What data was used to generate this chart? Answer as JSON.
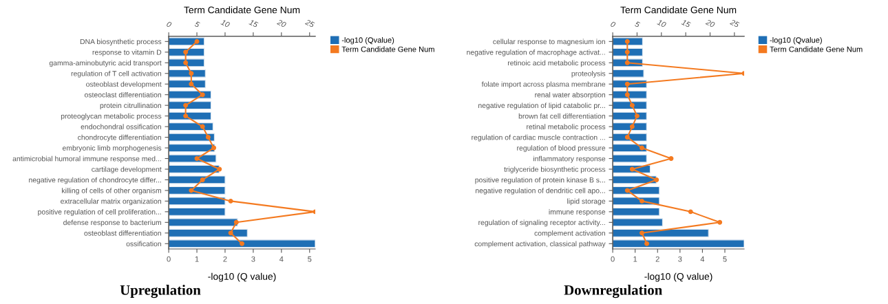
{
  "chart_data": [
    {
      "type": "bar",
      "orientation": "horizontal",
      "x2label": "Term Candidate Gene Num",
      "xlabel": "-log10 (Q value)",
      "annotations": [
        "Upregulation"
      ],
      "legend": "top right",
      "marker": "circle",
      "grid": false,
      "categories": [
        "DNA biosynthetic process",
        "response to vitamin D",
        "gamma-aminobutyric acid transport",
        "regulation of T cell activation",
        "osteoblast development",
        "osteoclast differentiation",
        "protein citrullination",
        "proteoglycan metabolic process",
        "endochondral ossification",
        "chondrocyte differentiation",
        "embryonic limb morphogenesis",
        "antimicrobial humoral immune response med...",
        "cartilage development",
        "negative regulation of chondrocyte differ...",
        "killing of cells of other organism",
        "extracellular matrix organization",
        "positive regulation of cell proliferation...",
        "defense response to bacterium",
        "osteoblast differentiation",
        "ossification"
      ],
      "xlim": [
        0,
        5.2
      ],
      "xticks": [
        0,
        1,
        2,
        3,
        4,
        5
      ],
      "x2lim": [
        0,
        26
      ],
      "x2ticks": [
        0,
        5,
        10,
        15,
        20,
        25
      ],
      "series": [
        {
          "name": "-log10 (Qvalue)",
          "color": "#1f6fb5",
          "values": [
            1.26,
            1.26,
            1.26,
            1.3,
            1.3,
            1.5,
            1.5,
            1.5,
            1.57,
            1.62,
            1.63,
            1.68,
            1.79,
            2.0,
            2.0,
            2.0,
            2.0,
            2.44,
            2.79,
            5.2
          ]
        },
        {
          "name": "Term Candidate Gene Num",
          "type": "line",
          "axis": "x2",
          "color": "#f47a20",
          "values": [
            5,
            3,
            3,
            4,
            4,
            6,
            3,
            3,
            6,
            7,
            8,
            5,
            9,
            6,
            4,
            11,
            26,
            12,
            11,
            13
          ]
        }
      ]
    },
    {
      "type": "bar",
      "orientation": "horizontal",
      "x2label": "Term Candidate Gene Num",
      "xlabel": "-log10 (Q value)",
      "annotations": [
        "Downregulation"
      ],
      "legend": "top right",
      "marker": "circle",
      "grid": false,
      "categories": [
        "cellular response to magnesium ion",
        "negative regulation of macrophage activat...",
        "retinoic acid metabolic process",
        "proteolysis",
        "folate import across plasma membrane",
        "renal water absorption",
        "negative regulation of lipid catabolic pr...",
        "brown fat cell differentiation",
        "retinal metabolic process",
        "regulation of cardiac muscle contraction ...",
        "regulation of blood pressure",
        "inflammatory response",
        "triglyceride biosynthetic process",
        "positive regulation of protein kinase B s...",
        "negative regulation of dendritic cell apo...",
        "lipid storage",
        "immune response",
        "regulation of signaling receptor activity...",
        "complement activation",
        "complement activation, classical pathway"
      ],
      "xlim": [
        0,
        5.86
      ],
      "xticks": [
        0,
        1,
        2,
        3,
        4,
        5
      ],
      "x2lim": [
        0,
        27
      ],
      "x2ticks": [
        0,
        5,
        10,
        15,
        20,
        25
      ],
      "series": [
        {
          "name": "-log10 (Qvalue)",
          "color": "#1f6fb5",
          "values": [
            1.33,
            1.33,
            1.33,
            1.38,
            1.51,
            1.51,
            1.51,
            1.51,
            1.51,
            1.51,
            1.51,
            1.51,
            1.67,
            1.94,
            2.08,
            2.08,
            2.08,
            2.22,
            4.27,
            5.86
          ]
        },
        {
          "name": "Term Candidate Gene Num",
          "type": "line",
          "axis": "x2",
          "color": "#f47a20",
          "values": [
            3,
            3,
            3,
            27,
            3,
            3,
            4,
            5,
            4,
            3,
            6,
            12,
            4,
            9,
            3,
            6,
            16,
            22,
            6,
            7
          ]
        }
      ]
    }
  ]
}
